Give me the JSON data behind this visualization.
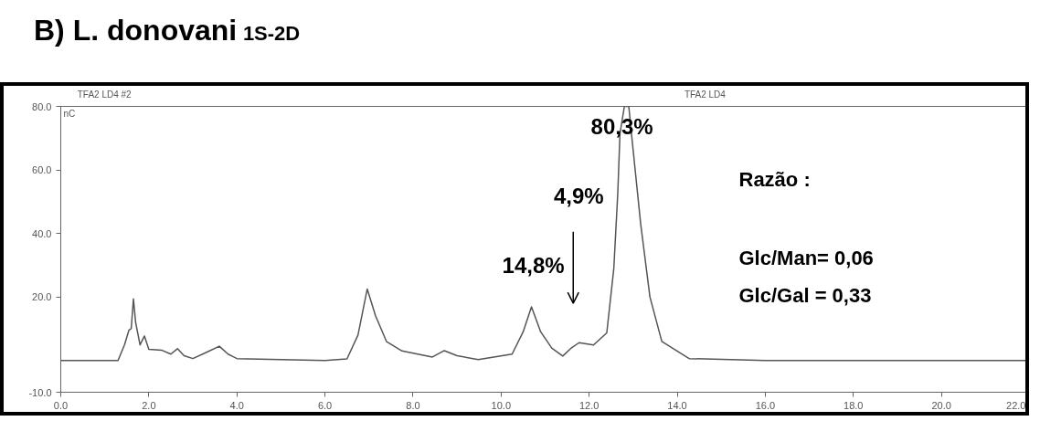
{
  "chart_data": {
    "type": "line",
    "title": "B) L. donovani",
    "subtitle": "1S-2D",
    "ylabel": "nC",
    "x": [
      0,
      1.3,
      1.45,
      1.55,
      1.6,
      1.65,
      1.7,
      1.8,
      1.9,
      2.0,
      2.3,
      2.5,
      2.65,
      2.8,
      3.0,
      3.3,
      3.6,
      3.8,
      4.0,
      5.0,
      6.0,
      6.5,
      6.75,
      6.96,
      7.15,
      7.4,
      7.75,
      8.44,
      8.71,
      9.0,
      9.48,
      10.25,
      10.5,
      10.69,
      10.9,
      11.15,
      11.4,
      11.6,
      11.77,
      12.1,
      12.4,
      12.56,
      12.65,
      12.7,
      12.8,
      12.85,
      12.9,
      12.96,
      13.17,
      13.38,
      13.65,
      14.27,
      16,
      18,
      20,
      22
    ],
    "series": [
      {
        "color": "#555555",
        "values": [
          0,
          0,
          5,
          9.6,
          10,
          19.4,
          12,
          4.9,
          7.7,
          3.5,
          3.2,
          2,
          3.7,
          1.5,
          0.6,
          2.5,
          4.5,
          2,
          0.6,
          0.3,
          0,
          0.5,
          8,
          22.5,
          14,
          5.9,
          3,
          1.1,
          3.1,
          1.5,
          0.3,
          2,
          9,
          16.9,
          9,
          3.9,
          1.4,
          4,
          5.6,
          4.9,
          8.7,
          29,
          52.7,
          71.5,
          80,
          80,
          80,
          71.5,
          43,
          20,
          6,
          0.6,
          0,
          0,
          0,
          0
        ]
      }
    ],
    "xlim": [
      0,
      22
    ],
    "ylim": [
      -10,
      80
    ],
    "xticks": [
      {
        "value": 0,
        "label": "0.0"
      },
      {
        "value": 2,
        "label": "2.0"
      },
      {
        "value": 4,
        "label": "4.0"
      },
      {
        "value": 6,
        "label": "6.0"
      },
      {
        "value": 8,
        "label": "8.0"
      },
      {
        "value": 10,
        "label": "10.0"
      },
      {
        "value": 12,
        "label": "12.0"
      },
      {
        "value": 14,
        "label": "14.0"
      },
      {
        "value": 16,
        "label": "16.0"
      },
      {
        "value": 18,
        "label": "18.0"
      },
      {
        "value": 20,
        "label": "20.0"
      },
      {
        "value": 22,
        "label": "22.0"
      }
    ],
    "yticks": [
      {
        "value": -10,
        "label": "-10.0"
      },
      {
        "value": 20,
        "label": "20.0"
      },
      {
        "value": 40,
        "label": "40.0"
      },
      {
        "value": 60,
        "label": "60.0"
      },
      {
        "value": 80,
        "label": "80.0"
      }
    ],
    "annotations": [
      "TFA2 LD4 #2",
      "TFA2 LD4",
      "Razão :",
      "Glc/Man= 0,06",
      "Glc/Gal = 0,33",
      "4,9%",
      {
        "text": "80,3%",
        "x": 12.85,
        "y": 80
      },
      {
        "text": "14,8%",
        "x": 10.69,
        "y": 16.9
      }
    ],
    "grid": false,
    "marker": "none",
    "line_style": "solid"
  }
}
